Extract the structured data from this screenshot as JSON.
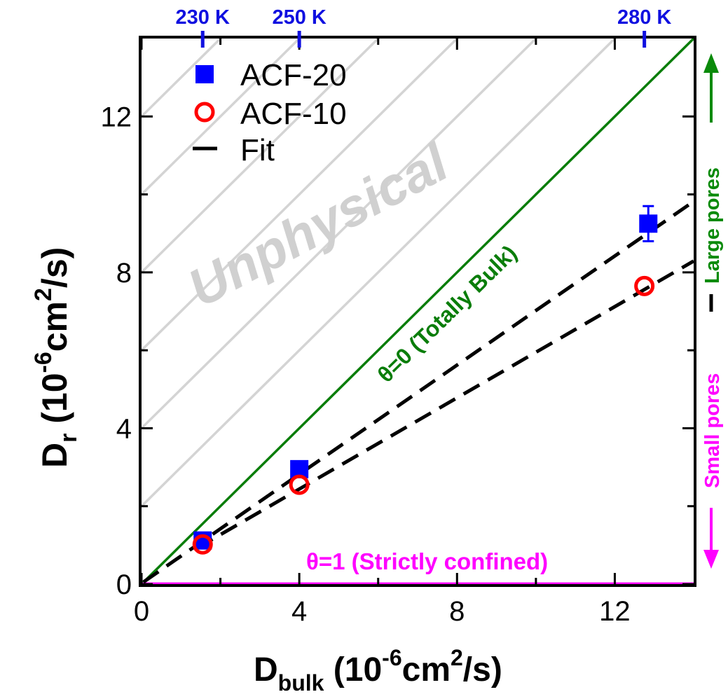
{
  "chart_data": {
    "type": "scatter",
    "xlabel": {
      "main": "D",
      "sub": "bulk",
      "unit_pre": " (10",
      "unit_sup": "-6",
      "unit_mid": "cm",
      "unit_sup2": "2",
      "unit_post": "/s)"
    },
    "ylabel": {
      "main": "D",
      "sub": "r",
      "unit_pre": " (10",
      "unit_sup": "-6",
      "unit_mid": "cm",
      "unit_sup2": "2",
      "unit_post": "/s)"
    },
    "xlim": [
      0,
      14
    ],
    "ylim": [
      0,
      14
    ],
    "xticks": [
      0,
      4,
      8,
      12
    ],
    "yticks": [
      0,
      4,
      8,
      12
    ],
    "xticks_minor": [
      2,
      6,
      10
    ],
    "yticks_minor": [
      2,
      6,
      10
    ],
    "top_axis": [
      {
        "label": "230 K",
        "x": 1.55
      },
      {
        "label": "250 K",
        "x": 4.0
      },
      {
        "label": "280 K",
        "x": 12.75
      }
    ],
    "series": [
      {
        "name": "ACF-20",
        "marker": "square",
        "color": "#0000ff",
        "points": [
          {
            "x": 1.55,
            "y": 1.12,
            "err": 0.12
          },
          {
            "x": 4.0,
            "y": 2.95,
            "err": 0.12
          },
          {
            "x": 12.85,
            "y": 9.25,
            "err": 0.45
          }
        ]
      },
      {
        "name": "ACF-10",
        "marker": "circle",
        "color": "#ff0000",
        "points": [
          {
            "x": 1.55,
            "y": 1.02
          },
          {
            "x": 4.0,
            "y": 2.55
          },
          {
            "x": 12.75,
            "y": 7.65
          }
        ]
      }
    ],
    "fits": [
      {
        "name": "Fit",
        "slope": 0.7,
        "intercept": 0.02,
        "xrange": [
          0.05,
          14.0
        ],
        "style": "dashed",
        "color": "#000000"
      },
      {
        "name": "Fit",
        "slope": 0.585,
        "intercept": 0.1,
        "xrange": [
          1.4,
          14.0
        ],
        "style": "dashed",
        "color": "#000000"
      }
    ],
    "reference_lines": [
      {
        "label": "θ=0  (Totally Bulk)",
        "slope": 1,
        "intercept": 0,
        "color": "#0a7d0a"
      },
      {
        "label": "θ=1 (Strictly confined)",
        "slope": 0,
        "intercept": 0,
        "color": "#ff00ff"
      }
    ],
    "unphysical_region": {
      "label": "Unphysical",
      "color": "#d4d4d4",
      "line_offsets": [
        2,
        4,
        6,
        8,
        10,
        12
      ]
    },
    "legend": {
      "position": "top-left",
      "entries": [
        "ACF-20",
        "ACF-10",
        "Fit"
      ]
    },
    "side_annotations": {
      "up_label": "Large pores",
      "down_label": "Small pores",
      "up_color": "#0a8a0a",
      "down_color": "#ff00ff"
    },
    "grid": false
  }
}
